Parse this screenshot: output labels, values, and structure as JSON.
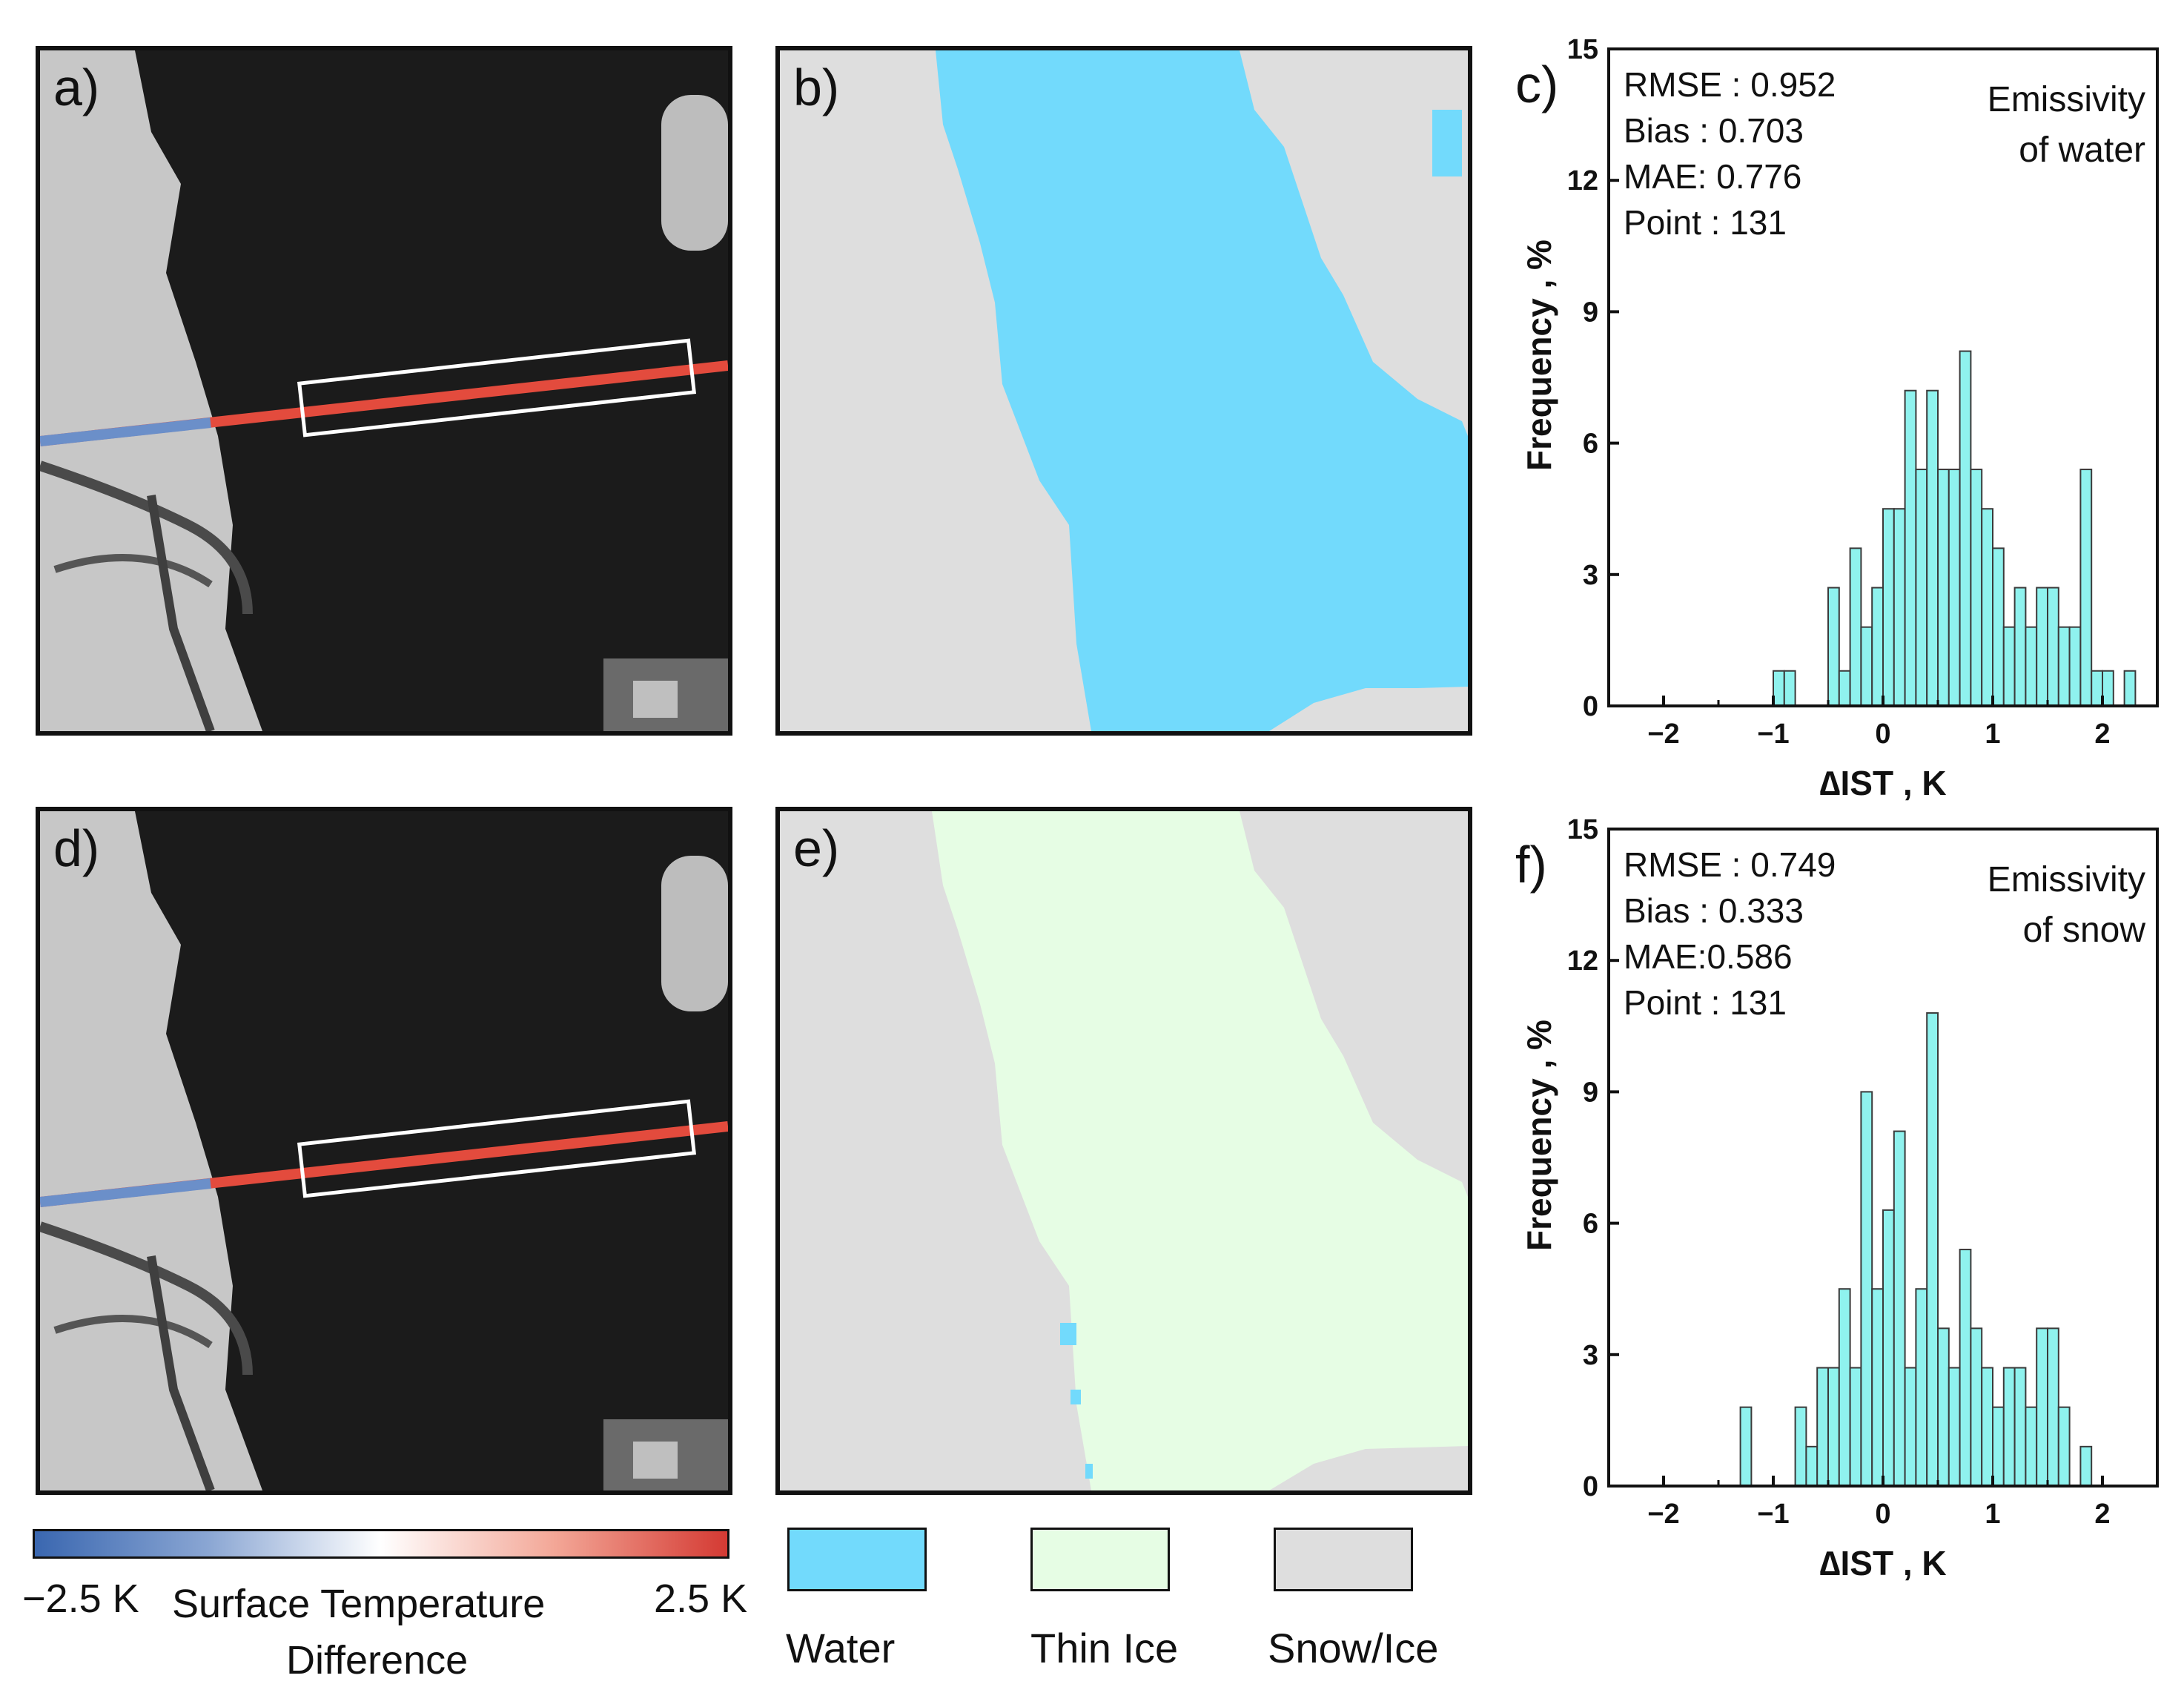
{
  "panels": {
    "a": "a)",
    "b": "b)",
    "c": "c)",
    "d": "d)",
    "e": "e)",
    "f": "f)"
  },
  "colors": {
    "water": "#72dafc",
    "thin_ice": "#e6fde4",
    "snow_ice": "#dedede",
    "bar_fill": "#8ff2ee",
    "cold": "#3a67b0",
    "warm": "#d43a33"
  },
  "colorbar": {
    "min_label": "−2.5 K",
    "max_label": "2.5 K",
    "title_line1": "Surface Temperature",
    "title_line2": "Difference"
  },
  "legend": {
    "water": "Water",
    "thin_ice": "Thin Ice",
    "snow_ice": "Snow/Ice"
  },
  "chart_data": [
    {
      "type": "bar",
      "panel": "c)",
      "title": "Emissivity of water",
      "title_line1": "Emissivity",
      "title_line2": "of water",
      "stats": [
        "RMSE : 0.952",
        "Bias : 0.703",
        "MAE: 0.776",
        "Point : 131"
      ],
      "xlabel": "∆IST , K",
      "ylabel": "Frequency , %",
      "xlim": [
        -2.5,
        2.5
      ],
      "ylim": [
        0,
        15
      ],
      "xticks": [
        -2,
        -1,
        0,
        1,
        2
      ],
      "yticks": [
        0,
        3,
        6,
        9,
        12,
        15
      ],
      "bin_width": 0.1,
      "bin_starts": [
        -1.0,
        -0.9,
        -0.5,
        -0.4,
        -0.3,
        -0.2,
        -0.1,
        0.0,
        0.1,
        0.2,
        0.3,
        0.4,
        0.5,
        0.6,
        0.7,
        0.8,
        0.9,
        1.0,
        1.1,
        1.2,
        1.3,
        1.4,
        1.5,
        1.6,
        1.7,
        1.8,
        1.9,
        2.0,
        2.2
      ],
      "values": [
        0.8,
        0.8,
        2.7,
        0.8,
        3.6,
        1.8,
        2.7,
        4.5,
        4.5,
        7.2,
        5.4,
        7.2,
        5.4,
        5.4,
        8.1,
        5.4,
        4.5,
        3.6,
        1.8,
        2.7,
        1.8,
        2.7,
        2.7,
        1.8,
        1.8,
        5.4,
        0.8,
        0.8,
        0.8
      ]
    },
    {
      "type": "bar",
      "panel": "f)",
      "title": "Emissivity of snow",
      "title_line1": "Emissivity",
      "title_line2": "of snow",
      "stats": [
        "RMSE : 0.749",
        "Bias : 0.333",
        "MAE:0.586",
        "Point : 131"
      ],
      "xlabel": "∆IST , K",
      "ylabel": "Frequency , %",
      "xlim": [
        -2.5,
        2.5
      ],
      "ylim": [
        0,
        15
      ],
      "xticks": [
        -2,
        -1,
        0,
        1,
        2
      ],
      "yticks": [
        0,
        3,
        6,
        9,
        12,
        15
      ],
      "bin_width": 0.1,
      "bin_starts": [
        -1.3,
        -0.8,
        -0.7,
        -0.6,
        -0.5,
        -0.4,
        -0.3,
        -0.2,
        -0.1,
        0.0,
        0.1,
        0.2,
        0.3,
        0.4,
        0.5,
        0.6,
        0.7,
        0.8,
        0.9,
        1.0,
        1.1,
        1.2,
        1.3,
        1.4,
        1.5,
        1.6,
        1.8
      ],
      "values": [
        1.8,
        1.8,
        0.9,
        2.7,
        2.7,
        4.5,
        2.7,
        9.0,
        4.5,
        6.3,
        8.1,
        2.7,
        4.5,
        10.8,
        3.6,
        2.7,
        5.4,
        3.6,
        2.7,
        1.8,
        2.7,
        2.7,
        1.8,
        3.6,
        3.6,
        1.8,
        0.9
      ]
    }
  ]
}
